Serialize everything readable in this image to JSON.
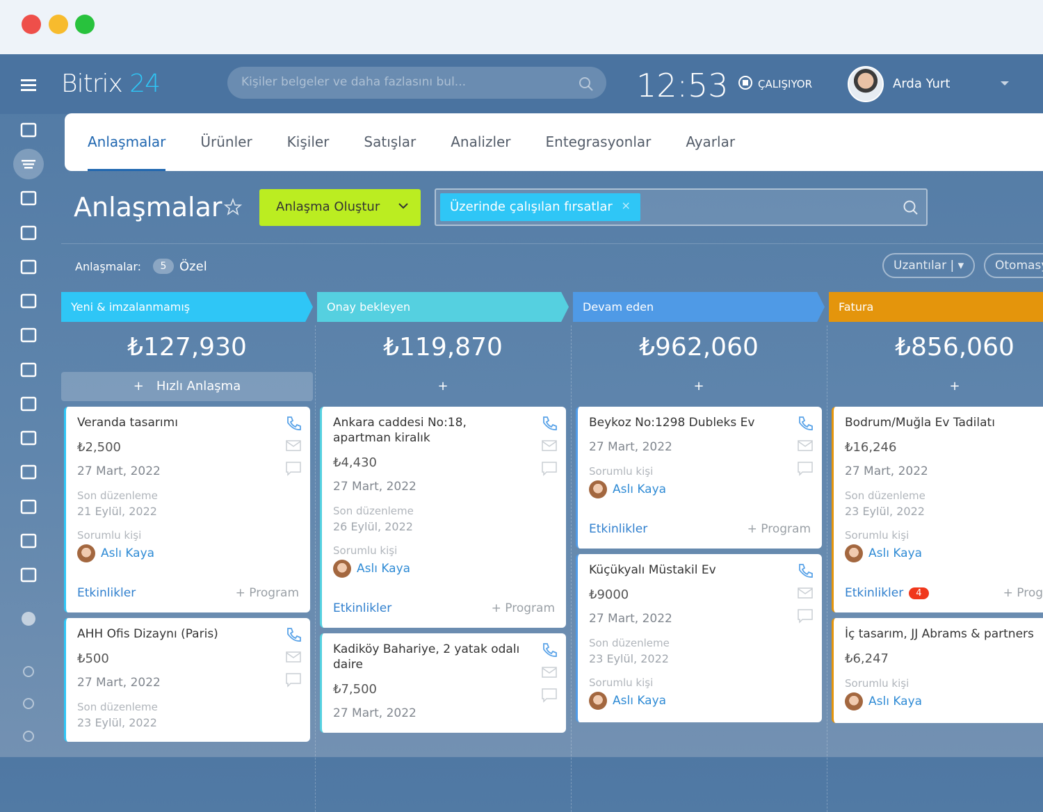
{
  "header": {
    "brand": "Bitrix",
    "brand_number": "24",
    "search_placeholder": "Kişiler belgeler ve daha fazlasını bul...",
    "clock": "12:53",
    "status": "ÇALIŞIYOR",
    "user": "Arda Yurt"
  },
  "tabs": [
    "Anlaşmalar",
    "Ürünler",
    "Kişiler",
    "Satışlar",
    "Analizler",
    "Entegrasyonlar",
    "Ayarlar"
  ],
  "toolbar": {
    "title": "Anlaşmalar",
    "create_button": "Anlaşma Oluştur",
    "filter_chip": "Üzerinde çalışılan fırsatlar"
  },
  "counter": {
    "label": "Anlaşmalar:",
    "count": 5,
    "filter": "Özel"
  },
  "actions": [
    "Uzantılar",
    "Otomasyon"
  ],
  "columns": [
    {
      "name": "Yeni & imzalanmamış",
      "color": "#2fc6f6",
      "total": "₺127,930",
      "add_label": "Hızlı Anlaşma",
      "cards": [
        {
          "title": "Veranda tasarımı",
          "amount": "₺2,500",
          "date": "27 Mart, 2022",
          "last_edit_label": "Son düzenleme",
          "last_edit": "21 Eylül, 2022",
          "responsible_label": "Sorumlu kişi",
          "responsible": "Aslı Kaya",
          "activities": "Etkinlikler",
          "schedule": "+ Program"
        },
        {
          "title": "AHH Ofis Dizaynı (Paris)",
          "amount": "₺500",
          "date": "27 Mart, 2022",
          "last_edit_label": "Son düzenleme",
          "last_edit": "23 Eylül, 2022"
        }
      ]
    },
    {
      "name": "Onay bekleyen",
      "color": "#55d0e0",
      "total": "₺119,870",
      "cards": [
        {
          "title": "Ankara caddesi No:18, apartman kiralık",
          "amount": "₺4,430",
          "date": "27 Mart, 2022",
          "last_edit_label": "Son düzenleme",
          "last_edit": "26 Eylül, 2022",
          "responsible_label": "Sorumlu kişi",
          "responsible": "Aslı Kaya",
          "activities": "Etkinlikler",
          "schedule": "+ Program"
        },
        {
          "title": "Kadiköy Bahariye, 2 yatak odalı daire",
          "amount": "₺7,500",
          "date": "27 Mart, 2022"
        }
      ]
    },
    {
      "name": "Devam eden",
      "color": "#4f9ae6",
      "total": "₺962,060",
      "cards": [
        {
          "title": "Beykoz No:1298 Dubleks Ev",
          "date": "27 Mart, 2022",
          "responsible_label": "Sorumlu kişi",
          "responsible": "Aslı Kaya",
          "activities": "Etkinlikler",
          "schedule": "+ Program"
        },
        {
          "title": "Küçükyalı Müstakil Ev",
          "amount": "₺9000",
          "date": "27 Mart, 2022",
          "last_edit_label": "Son düzenleme",
          "last_edit": "23 Eylül, 2022",
          "responsible_label": "Sorumlu kişi",
          "responsible": "Aslı Kaya"
        }
      ]
    },
    {
      "name": "Fatura",
      "color": "#e4950c",
      "total": "₺856,060",
      "cards": [
        {
          "title": "Bodrum/Muğla Ev Tadilatı",
          "amount": "₺16,246",
          "date": "27 Mart, 2022",
          "last_edit_label": "Son düzenleme",
          "last_edit": "23 Eylül, 2022",
          "responsible_label": "Sorumlu kişi",
          "responsible": "Aslı Kaya",
          "activities": "Etkinlikler",
          "badge": 4,
          "schedule": "+ Program"
        },
        {
          "title": "İç tasarım, JJ Abrams & partners",
          "amount": "₺6,247",
          "responsible_label": "Sorumlu kişi",
          "responsible": "Aslı Kaya"
        }
      ]
    }
  ]
}
